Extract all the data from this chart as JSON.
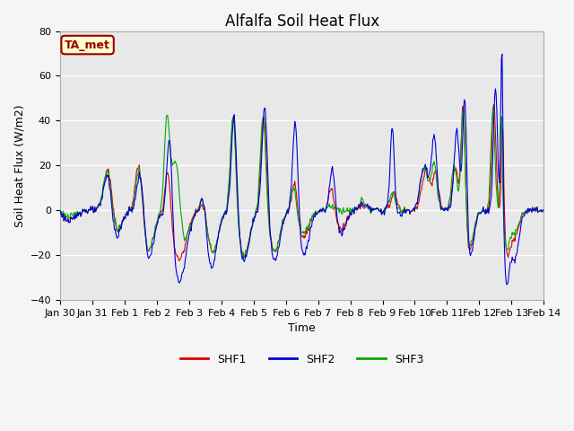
{
  "title": "Alfalfa Soil Heat Flux",
  "ylabel": "Soil Heat Flux (W/m2)",
  "xlabel": "Time",
  "ylim": [
    -40,
    80
  ],
  "yticks": [
    -40,
    -20,
    0,
    20,
    40,
    60,
    80
  ],
  "xtick_labels": [
    "Jan 30",
    "Jan 31",
    "Feb 1",
    "Feb 2",
    "Feb 3",
    "Feb 4",
    "Feb 5",
    "Feb 6",
    "Feb 7",
    "Feb 8",
    "Feb 9",
    "Feb 10",
    "Feb 11",
    "Feb 12",
    "Feb 13",
    "Feb 14"
  ],
  "legend_labels": [
    "SHF1",
    "SHF2",
    "SHF3"
  ],
  "line_colors": [
    "#dd0000",
    "#0000dd",
    "#00aa00"
  ],
  "annotation_text": "TA_met",
  "annotation_color": "#990000",
  "annotation_bg": "#ffffcc",
  "plot_bg": "#e8e8e8",
  "fig_bg": "#f5f5f5",
  "title_fontsize": 12,
  "label_fontsize": 9,
  "tick_fontsize": 8
}
